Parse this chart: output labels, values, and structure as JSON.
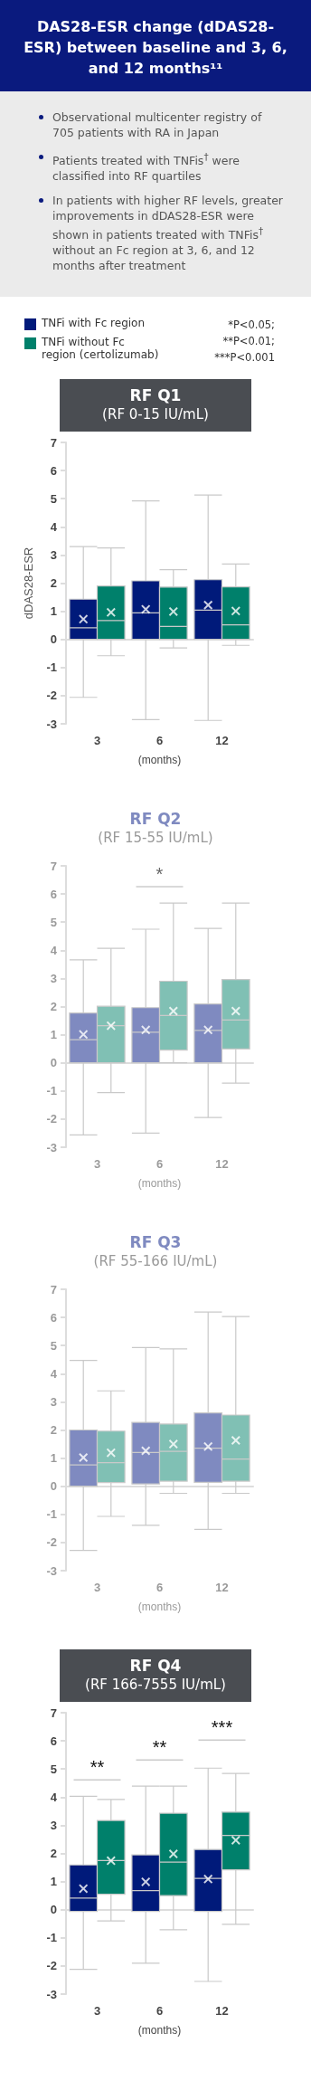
{
  "chart_data": [
    {
      "type": "other",
      "title": "DAS28-ESR change (dDAS28-ESR) between baseline and 3, 6, and 12 months¹¹",
      "annotations": [
        "Observational multicenter registry of 705 patients with RA in Japan",
        "Patients treated with TNFis$^{†}$ were classified into RF quartiles",
        "In patients with higher RF levels, greater improvements in dDAS28-ESR were shown in patients treated with TNFis$^{†}$ without an Fc region at 3, 6, and 12 months after treatment"
      ]
    },
    {
      "type": "box",
      "title": "RF Q1",
      "subtitle": "(RF 0-15 IU/mL)",
      "xlabel": "(months)",
      "ylabel": "dDAS28-ESR",
      "categories": [
        "3",
        "6",
        "12"
      ],
      "ylim": [
        -3,
        7
      ],
      "yticks": [
        -3,
        -2,
        -1,
        0,
        1,
        2,
        3,
        4,
        5,
        6,
        7
      ],
      "legend": "top left",
      "annotations": [
        "*P<0.05;",
        "**P<0.01;",
        "***P<0.001"
      ],
      "series": [
        {
          "name": "TNFi with Fc region",
          "color": "#001a7a",
          "boxes": [
            {
              "low": -2.06,
              "q1": 0,
              "median": 0.41,
              "q3": 1.43,
              "high": 3.3,
              "mean": 0.72
            },
            {
              "low": -2.85,
              "q1": 0,
              "median": 0.94,
              "q3": 2.08,
              "high": 4.92,
              "mean": 1.07
            },
            {
              "low": -2.88,
              "q1": 0,
              "median": 1.04,
              "q3": 2.12,
              "high": 5.13,
              "mean": 1.22
            }
          ]
        },
        {
          "name": "TNFi without Fc region (certolizumab)",
          "color": "#00806b",
          "boxes": [
            {
              "low": -0.58,
              "q1": 0,
              "median": 0.67,
              "q3": 1.9,
              "high": 3.25,
              "mean": 0.96
            },
            {
              "low": -0.3,
              "q1": 0,
              "median": 0.46,
              "q3": 1.86,
              "high": 2.48,
              "mean": 0.99
            },
            {
              "low": -0.21,
              "q1": 0,
              "median": 0.52,
              "q3": 1.87,
              "high": 2.68,
              "mean": 1.01
            }
          ]
        }
      ]
    },
    {
      "type": "box",
      "title": "RF Q2",
      "subtitle": "(RF 15-55 IU/mL)",
      "xlabel": "(months)",
      "categories": [
        "3",
        "6",
        "12"
      ],
      "ylim": [
        -3,
        7
      ],
      "yticks": [
        -3,
        -2,
        -1,
        0,
        1,
        2,
        3,
        4,
        5,
        6,
        7
      ],
      "annotations": [
        "*"
      ],
      "series": [
        {
          "color": "#7f8ac0",
          "boxes": [
            {
              "low": -2.56,
              "q1": 0,
              "median": 0.82,
              "q3": 1.77,
              "high": 3.66,
              "mean": 1.01
            },
            {
              "low": -2.5,
              "q1": 0,
              "median": 1.09,
              "q3": 1.96,
              "high": 4.75,
              "mean": 1.17
            },
            {
              "low": -1.94,
              "q1": 0,
              "median": 1.15,
              "q3": 2.09,
              "high": 4.78,
              "mean": 1.17
            }
          ]
        },
        {
          "color": "#80c0b4",
          "boxes": [
            {
              "low": -1.06,
              "q1": 0,
              "median": 1.32,
              "q3": 2.01,
              "high": 4.07,
              "mean": 1.32
            },
            {
              "low": 0,
              "q1": 0.45,
              "median": 1.68,
              "q3": 2.9,
              "high": 5.68,
              "mean": 1.84
            },
            {
              "low": -0.72,
              "q1": 0.49,
              "median": 1.52,
              "q3": 2.96,
              "high": 5.68,
              "mean": 1.84
            }
          ]
        }
      ]
    },
    {
      "type": "box",
      "title": "RF Q3",
      "subtitle": "(RF 55-166 IU/mL)",
      "xlabel": "(months)",
      "categories": [
        "3",
        "6",
        "12"
      ],
      "ylim": [
        -3,
        7
      ],
      "yticks": [
        -3,
        -2,
        -1,
        0,
        1,
        2,
        3,
        4,
        5,
        6,
        7
      ],
      "series": [
        {
          "color": "#7f8ac0",
          "boxes": [
            {
              "low": -2.28,
              "q1": 0,
              "median": 0.76,
              "q3": 2.0,
              "high": 4.47,
              "mean": 1.02
            },
            {
              "low": -1.39,
              "q1": 0.08,
              "median": 1.2,
              "q3": 2.27,
              "high": 4.93,
              "mean": 1.26
            },
            {
              "low": -1.53,
              "q1": 0.14,
              "median": 1.35,
              "q3": 2.61,
              "high": 6.19,
              "mean": 1.41
            }
          ]
        },
        {
          "color": "#80c0b4",
          "boxes": [
            {
              "low": -1.07,
              "q1": 0.13,
              "median": 0.84,
              "q3": 1.96,
              "high": 3.39,
              "mean": 1.19
            },
            {
              "low": -0.25,
              "q1": 0.18,
              "median": 1.24,
              "q3": 2.21,
              "high": 4.88,
              "mean": 1.5
            },
            {
              "low": -0.25,
              "q1": 0.18,
              "median": 0.97,
              "q3": 2.53,
              "high": 6.03,
              "mean": 1.63
            }
          ]
        }
      ]
    },
    {
      "type": "box",
      "title": "RF Q4",
      "subtitle": "(RF 166-7555 IU/mL)",
      "xlabel": "(months)",
      "categories": [
        "3",
        "6",
        "12"
      ],
      "ylim": [
        -3,
        7
      ],
      "yticks": [
        -3,
        -2,
        -1,
        0,
        1,
        2,
        3,
        4,
        5,
        6,
        7
      ],
      "annotations": [
        "**",
        "**",
        "***"
      ],
      "series": [
        {
          "color": "#001a7a",
          "boxes": [
            {
              "low": -2.12,
              "q1": -0.06,
              "median": 0.41,
              "q3": 1.59,
              "high": 4.03,
              "mean": 0.75
            },
            {
              "low": -1.9,
              "q1": -0.06,
              "median": 0.68,
              "q3": 1.95,
              "high": 4.39,
              "mean": 0.99
            },
            {
              "low": -2.55,
              "q1": -0.06,
              "median": 1.11,
              "q3": 2.14,
              "high": 5.03,
              "mean": 1.09
            }
          ]
        },
        {
          "color": "#00806b",
          "boxes": [
            {
              "low": -0.4,
              "q1": 0.55,
              "median": 1.75,
              "q3": 3.17,
              "high": 3.92,
              "mean": 1.74
            },
            {
              "low": -0.71,
              "q1": 0.5,
              "median": 1.69,
              "q3": 3.43,
              "high": 4.39,
              "mean": 1.98
            },
            {
              "low": -0.52,
              "q1": 1.42,
              "median": 2.64,
              "q3": 3.47,
              "high": 4.84,
              "mean": 2.47
            }
          ]
        }
      ]
    }
  ]
}
